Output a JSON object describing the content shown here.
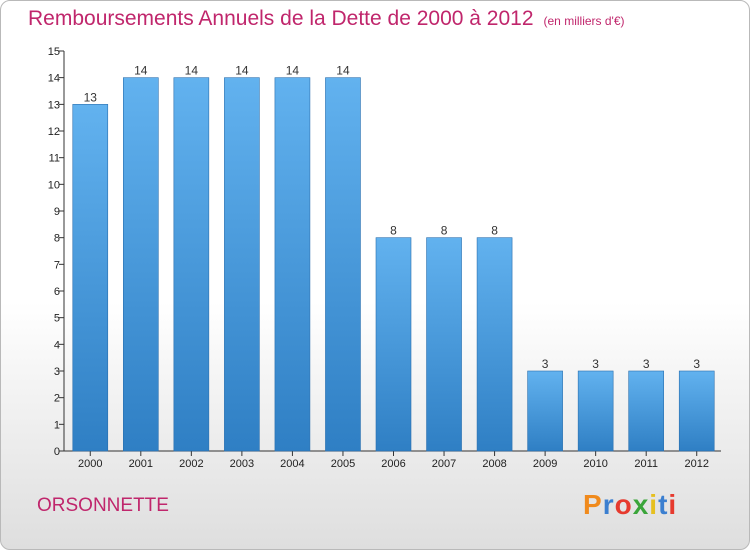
{
  "chart_data": {
    "type": "bar",
    "title": "Remboursements Annuels de la Dette de 2000 à 2012",
    "subtitle": "(en milliers d'€)",
    "categories": [
      "2000",
      "2001",
      "2002",
      "2003",
      "2004",
      "2005",
      "2006",
      "2007",
      "2008",
      "2009",
      "2010",
      "2011",
      "2012"
    ],
    "values": [
      13,
      14,
      14,
      14,
      14,
      14,
      8,
      8,
      8,
      3,
      3,
      3,
      3
    ],
    "ylim": [
      0,
      15
    ],
    "yticks": [
      0,
      1,
      2,
      3,
      4,
      5,
      6,
      7,
      8,
      9,
      10,
      11,
      12,
      13,
      14,
      15
    ],
    "grid": false,
    "bar_color": "#4a9ee0"
  },
  "commune": "ORSONNETTE",
  "brand": {
    "letters": [
      "P",
      "r",
      "o",
      "x",
      "i",
      "t",
      "i"
    ],
    "colors": [
      "#f08a1c",
      "#3b7fd0",
      "#e63a2e",
      "#3aa53a",
      "#e6c020",
      "#3b7fd0",
      "#e63a2e"
    ]
  }
}
